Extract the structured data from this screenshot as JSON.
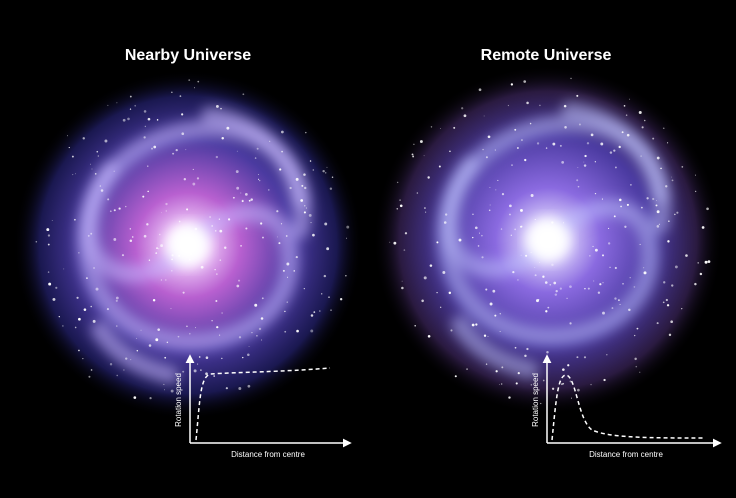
{
  "panels": [
    {
      "title": "Nearby Universe",
      "y_label": "Rotation speed",
      "x_label": "Distance from centre"
    },
    {
      "title": "Remote Universe",
      "y_label": "Rotation speed",
      "x_label": "Distance from centre"
    }
  ]
}
